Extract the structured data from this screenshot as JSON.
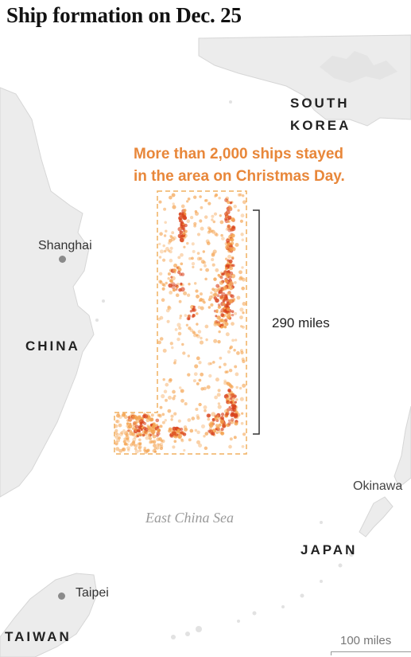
{
  "title": "Ship formation on Dec. 25",
  "annotation": {
    "line1": "More than 2,000 ships stayed",
    "line2": "in the area on Christmas Day."
  },
  "distance_label": "290 miles",
  "countries": {
    "south_korea_line1": "SOUTH",
    "south_korea_line2": "KOREA",
    "china": "CHINA",
    "japan": "JAPAN",
    "taiwan": "TAIWAN"
  },
  "cities": {
    "shanghai": "Shanghai",
    "okinawa": "Okinawa",
    "taipei": "Taipei"
  },
  "sea_label": "East China Sea",
  "scale_label": "100 miles",
  "colors": {
    "land": "#ececec",
    "coastline": "#d6d6d6",
    "annotation": "#e8873a",
    "ship_light": "#f4a04a",
    "ship_dense": "#d8401a",
    "formation_outline": "#f0b060"
  }
}
